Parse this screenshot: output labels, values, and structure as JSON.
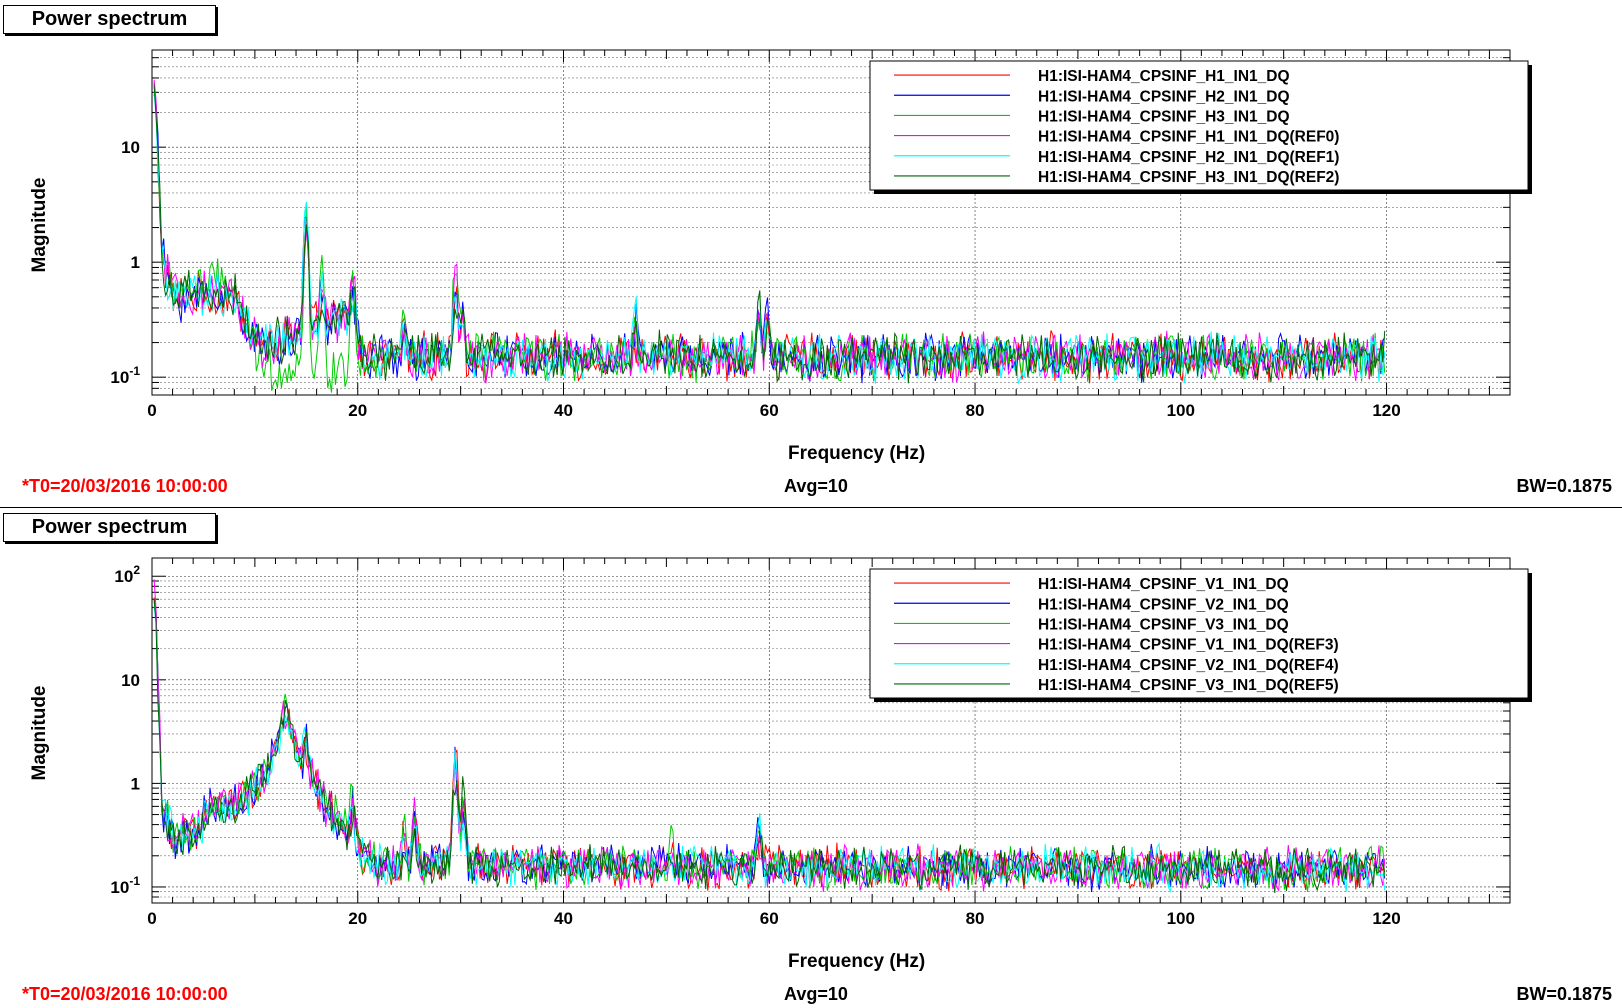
{
  "footer": {
    "t0": "*T0=20/03/2016 10:00:00",
    "avg": "Avg=10",
    "bw": "BW=0.1875"
  },
  "chart_data": [
    {
      "type": "line",
      "title": "Power spectrum",
      "xlabel": "Frequency (Hz)",
      "ylabel": "Magnitude",
      "xlim": [
        0,
        132
      ],
      "ylim": [
        0.07,
        70
      ],
      "yscale": "log",
      "grid": true,
      "legend_position": "top-right",
      "x_ticks": [
        "0",
        "20",
        "40",
        "60",
        "80",
        "100",
        "120"
      ],
      "y_ticks": [
        {
          "value": 0.1,
          "base": "10",
          "exp": "-1"
        },
        {
          "value": 1,
          "base": "1",
          "exp": ""
        },
        {
          "value": 10,
          "base": "10",
          "exp": ""
        }
      ],
      "series": [
        {
          "name": "H1:ISI-HAM4_CPSINF_H1_IN1_DQ",
          "color": "#ff0000"
        },
        {
          "name": "H1:ISI-HAM4_CPSINF_H2_IN1_DQ",
          "color": "#0000ff"
        },
        {
          "name": "H1:ISI-HAM4_CPSINF_H3_IN1_DQ",
          "color": "#00cc00"
        },
        {
          "name": "H1:ISI-HAM4_CPSINF_H1_IN1_DQ(REF0)",
          "color": "#ff00ff"
        },
        {
          "name": "H1:ISI-HAM4_CPSINF_H2_IN1_DQ(REF1)",
          "color": "#00ffff"
        },
        {
          "name": "H1:ISI-HAM4_CPSINF_H3_IN1_DQ(REF2)",
          "color": "#006600"
        }
      ],
      "shape": {
        "floor": 0.15,
        "points": [
          [
            0,
            60
          ],
          [
            0.4,
            20
          ],
          [
            1,
            1.1
          ],
          [
            2,
            0.5
          ],
          [
            5,
            0.5
          ],
          [
            8,
            0.5
          ],
          [
            9.5,
            0.25
          ],
          [
            11,
            0.18
          ],
          [
            12,
            0.2
          ],
          [
            19.5,
            0.35
          ],
          [
            20.5,
            0.15
          ],
          [
            120,
            0.15
          ]
        ],
        "peaks": [
          {
            "x": 15,
            "y": 3.2
          },
          {
            "x": 16.5,
            "y": 0.8
          },
          {
            "x": 19.5,
            "y": 0.9
          },
          {
            "x": 24.5,
            "y": 0.35
          },
          {
            "x": 29.5,
            "y": 0.95
          },
          {
            "x": 30.2,
            "y": 0.5
          },
          {
            "x": 47,
            "y": 0.35
          },
          {
            "x": 59,
            "y": 0.55
          },
          {
            "x": 59.8,
            "y": 0.4
          }
        ],
        "series_variants": {
          "2": {
            "points": [
              [
                0,
                60
              ],
              [
                0.4,
                20
              ],
              [
                1,
                1.1
              ],
              [
                2,
                0.5
              ],
              [
                5,
                0.7
              ],
              [
                8,
                0.6
              ],
              [
                9.5,
                0.2
              ],
              [
                11,
                0.12
              ],
              [
                19.5,
                0.12
              ],
              [
                20.5,
                0.15
              ],
              [
                120,
                0.15
              ]
            ]
          }
        }
      }
    },
    {
      "type": "line",
      "title": "Power spectrum",
      "xlabel": "Frequency (Hz)",
      "ylabel": "Magnitude",
      "xlim": [
        0,
        132
      ],
      "ylim": [
        0.07,
        150
      ],
      "yscale": "log",
      "grid": true,
      "legend_position": "top-right",
      "x_ticks": [
        "0",
        "20",
        "40",
        "60",
        "80",
        "100",
        "120"
      ],
      "y_ticks": [
        {
          "value": 0.1,
          "base": "10",
          "exp": "-1"
        },
        {
          "value": 1,
          "base": "1",
          "exp": ""
        },
        {
          "value": 10,
          "base": "10",
          "exp": ""
        },
        {
          "value": 100,
          "base": "10",
          "exp": "2"
        }
      ],
      "series": [
        {
          "name": "H1:ISI-HAM4_CPSINF_V1_IN1_DQ",
          "color": "#ff0000"
        },
        {
          "name": "H1:ISI-HAM4_CPSINF_V2_IN1_DQ",
          "color": "#0000ff"
        },
        {
          "name": "H1:ISI-HAM4_CPSINF_V3_IN1_DQ",
          "color": "#00cc00"
        },
        {
          "name": "H1:ISI-HAM4_CPSINF_V1_IN1_DQ(REF3)",
          "color": "#ff00ff"
        },
        {
          "name": "H1:ISI-HAM4_CPSINF_V2_IN1_DQ(REF4)",
          "color": "#00ffff"
        },
        {
          "name": "H1:ISI-HAM4_CPSINF_V3_IN1_DQ(REF5)",
          "color": "#006600"
        }
      ],
      "shape": {
        "floor": 0.15,
        "points": [
          [
            0,
            130
          ],
          [
            0.4,
            30
          ],
          [
            1,
            0.6
          ],
          [
            2,
            0.3
          ],
          [
            4,
            0.35
          ],
          [
            6,
            0.6
          ],
          [
            9,
            0.7
          ],
          [
            11,
            1.2
          ],
          [
            12.5,
            3.5
          ],
          [
            13,
            5.5
          ],
          [
            14,
            2
          ],
          [
            15.5,
            1.2
          ],
          [
            17,
            0.6
          ],
          [
            19,
            0.35
          ],
          [
            20.5,
            0.2
          ],
          [
            22,
            0.16
          ],
          [
            120,
            0.15
          ]
        ],
        "peaks": [
          {
            "x": 15,
            "y": 4
          },
          {
            "x": 19.5,
            "y": 0.9
          },
          {
            "x": 24.5,
            "y": 0.4
          },
          {
            "x": 25.5,
            "y": 0.6
          },
          {
            "x": 29.5,
            "y": 2.2
          },
          {
            "x": 30.3,
            "y": 0.9
          },
          {
            "x": 50.5,
            "y": 0.3
          },
          {
            "x": 59,
            "y": 0.5
          }
        ],
        "series_variants": {}
      }
    }
  ]
}
